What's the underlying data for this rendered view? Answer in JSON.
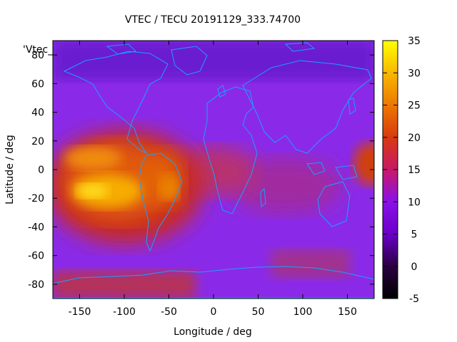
{
  "chart_data": {
    "type": "heatmap",
    "title": "VTEC / TECU 20191129_333.74700",
    "xlabel": "Longitude / deg",
    "ylabel": "Latitude / deg",
    "key_label": "'Vtec_",
    "xlim": [
      -180,
      180
    ],
    "ylim": [
      -90,
      90
    ],
    "colorbar_range": [
      -5,
      35
    ],
    "x_ticks": [
      -150,
      -100,
      -50,
      0,
      50,
      100,
      150
    ],
    "y_ticks": [
      -80,
      -60,
      -40,
      -20,
      0,
      20,
      40,
      60,
      80
    ],
    "colorbar_ticks": [
      -5,
      0,
      5,
      10,
      15,
      20,
      25,
      30,
      35
    ],
    "colormap": "gnuplot palette (black-purple-red-orange-yellow)",
    "background_level": 8,
    "features": [
      {
        "name": "equatorial anomaly Pacific",
        "lon": -130,
        "lat": -15,
        "value": 33
      },
      {
        "name": "equatorial anomaly northern crest",
        "lon": -130,
        "lat": 10,
        "value": 24
      },
      {
        "name": "South America crest",
        "lon": -50,
        "lat": -20,
        "value": 28
      },
      {
        "name": "Atlantic equatorial",
        "lon": -20,
        "lat": 0,
        "value": 16
      },
      {
        "name": "Indian Ocean equatorial",
        "lon": 60,
        "lat": -10,
        "value": 11
      },
      {
        "name": "Antarctic ring",
        "lon": -100,
        "lat": -80,
        "value": 15
      },
      {
        "name": "Arctic low",
        "lon": 40,
        "lat": 80,
        "value": 6
      }
    ]
  }
}
